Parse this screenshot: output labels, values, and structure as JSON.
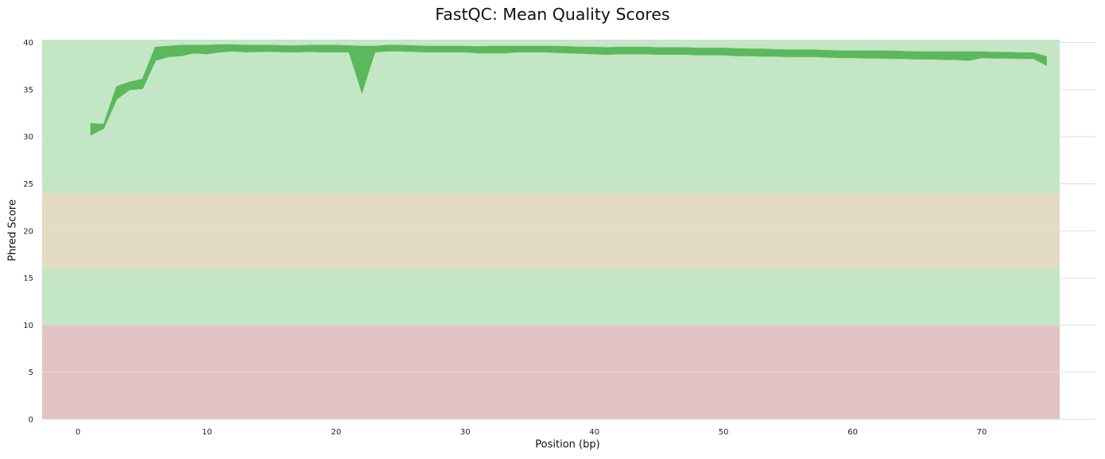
{
  "chart_data": {
    "type": "line",
    "title": "FastQC: Mean Quality Scores",
    "xlabel": "Position (bp)",
    "ylabel": "Phred Score",
    "xlim": [
      -2.75,
      76.5
    ],
    "ylim": [
      0,
      40.3
    ],
    "xticks": [
      0,
      10,
      20,
      30,
      40,
      50,
      60,
      70
    ],
    "yticks": [
      0,
      5,
      10,
      15,
      20,
      25,
      30,
      35,
      40
    ],
    "grid": "horizontal",
    "legend": "none",
    "colors": {
      "line": "#5cb85c",
      "band_good": "#c3e6c5",
      "band_warn": "#e4dbc5",
      "band_fail": "#e3c3c3",
      "grid": "#dddddd"
    },
    "bands": [
      {
        "from": 0,
        "to": 10,
        "color": "#e3c3c3"
      },
      {
        "from": 10,
        "to": 16,
        "color": "#c3e6c5"
      },
      {
        "from": 16,
        "to": 24,
        "color": "#e4dbc5"
      },
      {
        "from": 24,
        "to": 40.3,
        "color": "#c3e6c5"
      }
    ],
    "series_envelope": {
      "x": [
        1,
        2,
        3,
        4,
        5,
        6,
        7,
        8,
        9,
        10,
        11,
        12,
        13,
        14,
        15,
        16,
        17,
        18,
        19,
        20,
        21,
        22,
        23,
        24,
        25,
        26,
        27,
        28,
        29,
        30,
        31,
        32,
        33,
        34,
        35,
        36,
        37,
        38,
        39,
        40,
        41,
        42,
        43,
        44,
        45,
        46,
        47,
        48,
        49,
        50,
        51,
        52,
        53,
        54,
        55,
        56,
        57,
        58,
        59,
        60,
        61,
        62,
        63,
        64,
        65,
        66,
        67,
        68,
        69,
        70,
        71,
        72,
        73,
        74,
        75
      ],
      "upper": [
        31.4,
        31.3,
        35.3,
        35.8,
        36.1,
        39.5,
        39.6,
        39.7,
        39.7,
        39.7,
        39.75,
        39.75,
        39.7,
        39.7,
        39.7,
        39.65,
        39.65,
        39.7,
        39.7,
        39.7,
        39.65,
        39.6,
        39.6,
        39.7,
        39.7,
        39.65,
        39.6,
        39.6,
        39.6,
        39.6,
        39.55,
        39.6,
        39.6,
        39.6,
        39.6,
        39.6,
        39.6,
        39.55,
        39.5,
        39.5,
        39.45,
        39.5,
        39.5,
        39.5,
        39.45,
        39.45,
        39.45,
        39.4,
        39.4,
        39.4,
        39.35,
        39.3,
        39.3,
        39.25,
        39.2,
        39.2,
        39.2,
        39.15,
        39.1,
        39.1,
        39.1,
        39.1,
        39.1,
        39.05,
        39.0,
        39.0,
        39.0,
        39.0,
        39.0,
        39.0,
        38.95,
        38.95,
        38.9,
        38.9,
        38.5
      ],
      "lower": [
        30.2,
        30.9,
        34.0,
        35.0,
        35.1,
        38.1,
        38.5,
        38.6,
        38.9,
        38.8,
        39.0,
        39.1,
        39.0,
        39.05,
        39.05,
        39.0,
        39.0,
        39.05,
        39.0,
        39.0,
        39.0,
        34.8,
        39.0,
        39.1,
        39.1,
        39.05,
        39.0,
        39.0,
        39.0,
        39.0,
        38.9,
        38.9,
        38.9,
        39.0,
        39.0,
        39.0,
        38.95,
        38.9,
        38.85,
        38.8,
        38.75,
        38.8,
        38.8,
        38.8,
        38.75,
        38.75,
        38.75,
        38.7,
        38.7,
        38.7,
        38.6,
        38.6,
        38.55,
        38.55,
        38.5,
        38.5,
        38.5,
        38.45,
        38.4,
        38.4,
        38.35,
        38.35,
        38.3,
        38.3,
        38.25,
        38.25,
        38.2,
        38.2,
        38.1,
        38.4,
        38.35,
        38.35,
        38.3,
        38.3,
        37.6
      ]
    },
    "outlier_series": {
      "x": [
        21,
        22,
        23
      ],
      "values": [
        39.3,
        34.8,
        39.3
      ]
    }
  }
}
